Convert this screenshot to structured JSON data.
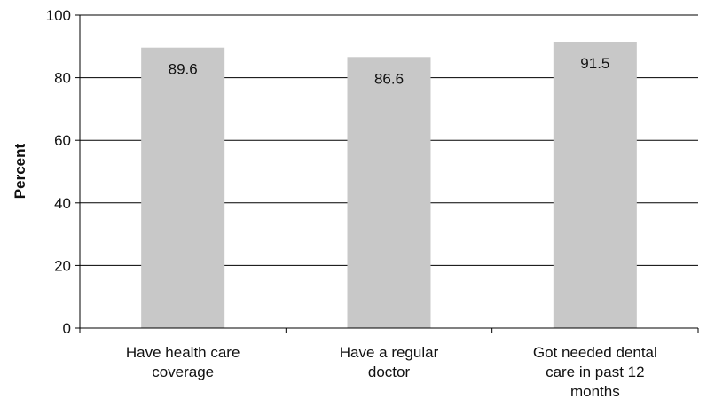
{
  "chart_data": {
    "type": "bar",
    "categories": [
      "Have health care coverage",
      "Have a regular doctor",
      "Got needed dental care in past 12 months"
    ],
    "category_label_lines": [
      [
        "Have health care",
        "coverage"
      ],
      [
        "Have a regular",
        "doctor"
      ],
      [
        "Got needed dental",
        "care in past 12",
        "months"
      ]
    ],
    "values": [
      89.6,
      86.6,
      91.5
    ],
    "data_labels": [
      "89.6",
      "86.6",
      "91.5"
    ],
    "title": "",
    "xlabel": "",
    "ylabel": "Percent",
    "ylim": [
      0,
      100
    ],
    "yticks": [
      0,
      20,
      40,
      60,
      80,
      100
    ],
    "ytick_labels": [
      "0",
      "20",
      "40",
      "60",
      "80",
      "100"
    ],
    "grid": true,
    "legend": "none",
    "bar_color": "#c8c8c8",
    "gridline_color": "#000000"
  }
}
